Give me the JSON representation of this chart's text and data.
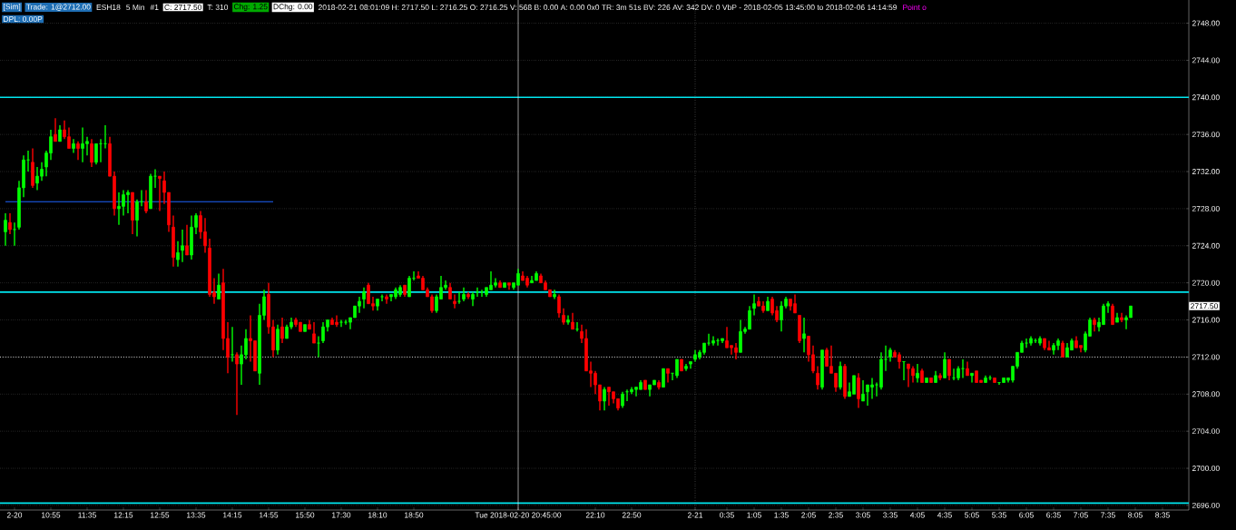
{
  "chart_data": {
    "type": "candlestick",
    "categories": [
      null,
      null,
      "2-20",
      null,
      null,
      null,
      null,
      null,
      null,
      null,
      "10:55",
      null,
      null,
      null,
      null,
      null,
      null,
      null,
      "11:35",
      null,
      null,
      null,
      null,
      null,
      null,
      null,
      "12:15",
      null,
      null,
      null,
      null,
      null,
      null,
      null,
      "12:55",
      null,
      null,
      null,
      null,
      null,
      null,
      null,
      "13:35",
      null,
      null,
      null,
      null,
      null,
      null,
      null,
      "14:15",
      null,
      null,
      null,
      null,
      null,
      null,
      null,
      "14:55",
      null,
      null,
      null,
      null,
      null,
      null,
      null,
      "15:50",
      null,
      null,
      null,
      null,
      null,
      null,
      null,
      "17:30",
      null,
      null,
      null,
      null,
      null,
      null,
      null,
      "18:10",
      null,
      null,
      null,
      null,
      null,
      null,
      null,
      "18:50",
      null,
      null,
      null,
      null,
      null,
      null,
      null,
      null,
      null,
      null,
      null,
      null,
      null,
      null,
      null,
      null,
      null,
      null,
      null,
      null,
      null,
      null,
      "Tue 2018-02-20 20:45:00",
      null,
      null,
      null,
      null,
      null,
      null,
      null,
      null,
      null,
      null,
      null,
      null,
      null,
      null,
      null,
      null,
      "22:10",
      null,
      null,
      null,
      null,
      null,
      null,
      null,
      "22:50",
      null,
      null,
      null,
      null,
      null,
      null,
      null,
      null,
      null,
      null,
      null,
      null,
      null,
      "2-21",
      null,
      null,
      null,
      null,
      null,
      null,
      "0:35",
      null,
      null,
      null,
      null,
      null,
      "1:05",
      null,
      null,
      null,
      null,
      null,
      "1:35",
      null,
      null,
      null,
      null,
      null,
      "2:05",
      null,
      null,
      null,
      null,
      null,
      "2:35",
      null,
      null,
      null,
      null,
      null,
      "3:05",
      null,
      null,
      null,
      null,
      null,
      "3:35",
      null,
      null,
      null,
      null,
      null,
      "4:05",
      null,
      null,
      null,
      null,
      null,
      "4:35",
      null,
      null,
      null,
      null,
      null,
      "5:05",
      null,
      null,
      null,
      null,
      null,
      "5:35",
      null,
      null,
      null,
      null,
      null,
      "6:05",
      null,
      null,
      null,
      null,
      null,
      "6:35",
      null,
      null,
      null,
      null,
      null,
      "7:05",
      null,
      null,
      null,
      null,
      null,
      "7:35",
      null,
      null,
      null,
      null,
      null,
      "8:05",
      null,
      null,
      null,
      null,
      null,
      "8:35",
      null,
      null,
      null,
      null,
      null
    ],
    "ohlc": [
      [
        2725.5,
        2727.5,
        2724,
        2726.75
      ],
      [
        2726.5,
        2727.5,
        2725.25,
        2725.75
      ],
      [
        2725.75,
        2726.5,
        2724,
        2725.75
      ],
      [
        2726,
        2731,
        2725.75,
        2730.25
      ],
      [
        2730.25,
        2733.75,
        2729.25,
        2733.25
      ],
      [
        2733.25,
        2734.25,
        2732,
        2733.25
      ],
      [
        2733,
        2734.5,
        2730.25,
        2730.5
      ],
      [
        2730.75,
        2732.5,
        2730,
        2731.5
      ],
      [
        2731.5,
        2733,
        2731,
        2732.25
      ],
      [
        2732.5,
        2734.25,
        2731.5,
        2734
      ],
      [
        2734,
        2736.5,
        2733.25,
        2735.75
      ],
      [
        2736,
        2737.75,
        2735.25,
        2735.25
      ],
      [
        2735.25,
        2737,
        2735.25,
        2736.5
      ],
      [
        2736.5,
        2737.5,
        2735.5,
        2735.75
      ],
      [
        2735.75,
        2736.75,
        2734.5,
        2734.5
      ],
      [
        2734.5,
        2735.5,
        2734,
        2735
      ],
      [
        2735,
        2735.25,
        2733.25,
        2734.5
      ],
      [
        2734.5,
        2736.75,
        2733,
        2735
      ],
      [
        2735,
        2735.75,
        2733.75,
        2735.25
      ],
      [
        2735,
        2735.5,
        2732.5,
        2733
      ],
      [
        2733,
        2735,
        2732.75,
        2735
      ],
      [
        2735,
        2735.5,
        2733,
        2735
      ],
      [
        2735,
        2737,
        2734.5,
        2735
      ],
      [
        2735,
        2735.75,
        2731.5,
        2731.5
      ],
      [
        2731.5,
        2732,
        2727.25,
        2728
      ],
      [
        2728,
        2729.75,
        2726.25,
        2728.25
      ],
      [
        2728.25,
        2730,
        2727.25,
        2729.5
      ],
      [
        2729.5,
        2730,
        2727.5,
        2729.75
      ],
      [
        2729.75,
        2729.75,
        2725.25,
        2726.75
      ],
      [
        2726.75,
        2729,
        2725,
        2728.75
      ],
      [
        2728.75,
        2730,
        2728.25,
        2728.75
      ],
      [
        2728.75,
        2730,
        2727.5,
        2727.75
      ],
      [
        2728,
        2731.75,
        2728,
        2731.5
      ],
      [
        2731.5,
        2732.25,
        2730.25,
        2731.5
      ],
      [
        2731.5,
        2731.5,
        2727.75,
        2731.25
      ],
      [
        2731,
        2732,
        2728.5,
        2729.75
      ],
      [
        2729.75,
        2729.75,
        2725.5,
        2726.25
      ],
      [
        2726,
        2727.25,
        2721.75,
        2722.75
      ],
      [
        2722.5,
        2724.5,
        2721.75,
        2723.25
      ],
      [
        2723.5,
        2725.75,
        2722.25,
        2724
      ],
      [
        2724,
        2726.25,
        2723,
        2723
      ],
      [
        2723,
        2727.25,
        2722.5,
        2726
      ],
      [
        2726,
        2727.5,
        2725.25,
        2727.25
      ],
      [
        2727.25,
        2727.75,
        2724.75,
        2725.5
      ],
      [
        2725.5,
        2727,
        2723.25,
        2724
      ],
      [
        2723.75,
        2724.75,
        2718.5,
        2718.75
      ],
      [
        2719,
        2720.5,
        2717.75,
        2718.5
      ],
      [
        2718.25,
        2721,
        2718.25,
        2719.75
      ],
      [
        2720,
        2721.5,
        2712.75,
        2714
      ],
      [
        2714,
        2715.75,
        2710.25,
        2712
      ],
      [
        2712.25,
        2715.25,
        2711.5,
        2712.25
      ],
      [
        2712.25,
        2712.5,
        2705.75,
        2711.25
      ],
      [
        2711.25,
        2713.25,
        2709,
        2712.25
      ],
      [
        2712.25,
        2715,
        2711.75,
        2714
      ],
      [
        2714,
        2716.5,
        2711.5,
        2713.75
      ],
      [
        2713.75,
        2713.75,
        2710.5,
        2710.5
      ],
      [
        2710.25,
        2717.75,
        2709,
        2716.5
      ],
      [
        2716.5,
        2719.25,
        2716,
        2718.5
      ],
      [
        2718.75,
        2720,
        2714.5,
        2715.25
      ],
      [
        2715.25,
        2716,
        2712,
        2712.75
      ],
      [
        2712.75,
        2715.5,
        2712.25,
        2715
      ],
      [
        2715.25,
        2716.25,
        2713.5,
        2714
      ],
      [
        2714,
        2715.5,
        2714,
        2715.25
      ],
      [
        2715.25,
        2716.25,
        2715,
        2715.75
      ],
      [
        2716,
        2716.25,
        2715.25,
        2715.5
      ],
      [
        2715.75,
        2715.75,
        2714.75,
        2714.75
      ],
      [
        2714.75,
        2715.5,
        2714.75,
        2715.5
      ],
      [
        2715.5,
        2716,
        2715,
        2715
      ],
      [
        2714.5,
        2715.75,
        2713.5,
        2713.5
      ],
      [
        2713.5,
        2714.25,
        2712,
        2713.5
      ],
      [
        2713.75,
        2715.75,
        2713.5,
        2715.25
      ],
      [
        2715.25,
        2716,
        2714.75,
        2716
      ],
      [
        2716,
        2716.25,
        2715.5,
        2715.5
      ],
      [
        2715.75,
        2716.5,
        2715.25,
        2715.5
      ],
      [
        2715.75,
        2716,
        2715.25,
        2715.75
      ],
      [
        2715.75,
        2716,
        2715.5,
        2715.75
      ],
      [
        2715.75,
        2716.25,
        2715,
        2716.25
      ],
      [
        2716.25,
        2717.5,
        2716.25,
        2717.5
      ],
      [
        2717.5,
        2718.5,
        2716.75,
        2718
      ],
      [
        2718.25,
        2719.5,
        2717.25,
        2719
      ],
      [
        2719.75,
        2720,
        2717.75,
        2717.75
      ],
      [
        2717.75,
        2718.5,
        2717,
        2717.5
      ],
      [
        2717.5,
        2718.25,
        2717,
        2718.25
      ],
      [
        2718.5,
        2718.75,
        2718,
        2718.5
      ],
      [
        2718.5,
        2718.75,
        2717.75,
        2718.25
      ],
      [
        2718.5,
        2718.75,
        2718,
        2718.75
      ],
      [
        2718.5,
        2719.5,
        2718.25,
        2719.25
      ],
      [
        2718.75,
        2719.75,
        2718.5,
        2719.5
      ],
      [
        2719.75,
        2719.75,
        2718.5,
        2718.75
      ],
      [
        2718.5,
        2720.75,
        2718.5,
        2720.5
      ],
      [
        2720.5,
        2721.25,
        2720.25,
        2720.5
      ],
      [
        2720.75,
        2721.25,
        2720.5,
        2720.5
      ],
      [
        2720.5,
        2720.75,
        2719.25,
        2719.25
      ],
      [
        2719.25,
        2719.5,
        2718.5,
        2718.5
      ],
      [
        2718.5,
        2718.75,
        2716.75,
        2717
      ],
      [
        2717,
        2718.75,
        2716.75,
        2718.5
      ],
      [
        2718.25,
        2720.75,
        2718.25,
        2719.5
      ],
      [
        2719.5,
        2720.25,
        2719.25,
        2719.75
      ],
      [
        2719.5,
        2720,
        2718.25,
        2718.25
      ],
      [
        2718,
        2718.75,
        2717.25,
        2717.75
      ],
      [
        2718,
        2719,
        2717.75,
        2718
      ],
      [
        2718.25,
        2719.5,
        2718,
        2718.75
      ],
      [
        2718.75,
        2719,
        2718.25,
        2718.5
      ],
      [
        2718.25,
        2719,
        2717.5,
        2718.75
      ],
      [
        2719,
        2719.5,
        2718.5,
        2719
      ],
      [
        2719,
        2719.25,
        2718.5,
        2719
      ],
      [
        2718.75,
        2719.5,
        2718.5,
        2719.5
      ],
      [
        2719.25,
        2721.25,
        2719.25,
        2719.75
      ],
      [
        2719.75,
        2720.5,
        2719.5,
        2720
      ],
      [
        2720,
        2720.25,
        2719.5,
        2719.5
      ],
      [
        2719.5,
        2720,
        2719.5,
        2720
      ],
      [
        2720,
        2720,
        2719.25,
        2719.75
      ],
      [
        2719.5,
        2720,
        2719.25,
        2720
      ],
      [
        2719.75,
        2721.5,
        2719.75,
        2721
      ],
      [
        2720.75,
        2721.25,
        2720.25,
        2720.25
      ],
      [
        2720.5,
        2720.75,
        2719.5,
        2719.75
      ],
      [
        2720,
        2720.75,
        2720,
        2720.25
      ],
      [
        2720.25,
        2721.25,
        2720.25,
        2721
      ],
      [
        2720.75,
        2721,
        2720,
        2720
      ],
      [
        2720,
        2720.25,
        2719.25,
        2719.25
      ],
      [
        2719.25,
        2719.25,
        2718.5,
        2718.5
      ],
      [
        2718.5,
        2719.25,
        2718.25,
        2718.75
      ],
      [
        2718.5,
        2718.75,
        2716.25,
        2716.75
      ],
      [
        2716.5,
        2717.25,
        2715.5,
        2715.75
      ],
      [
        2715.75,
        2716.5,
        2715.5,
        2716
      ],
      [
        2715.75,
        2716.75,
        2715,
        2715
      ],
      [
        2715,
        2715.75,
        2714.75,
        2715
      ],
      [
        2714.75,
        2715.5,
        2713.5,
        2714
      ],
      [
        2714,
        2715,
        2710.5,
        2710.5
      ],
      [
        2710.5,
        2711.5,
        2708.75,
        2710.25
      ],
      [
        2710.25,
        2710.5,
        2708,
        2709
      ],
      [
        2709,
        2709,
        2706.25,
        2707.25
      ],
      [
        2707.25,
        2708.75,
        2706.25,
        2708.5
      ],
      [
        2708.75,
        2708.75,
        2706.75,
        2708.25
      ],
      [
        2708.25,
        2708.25,
        2707,
        2707.5
      ],
      [
        2707.5,
        2707.5,
        2706.25,
        2706.5
      ],
      [
        2706.75,
        2708.25,
        2706.5,
        2708
      ],
      [
        2708.25,
        2708.5,
        2707.25,
        2708.25
      ],
      [
        2708.25,
        2708.75,
        2708,
        2708.5
      ],
      [
        2708.5,
        2708.75,
        2707.75,
        2708.75
      ],
      [
        2708.5,
        2709.5,
        2708.5,
        2709.25
      ],
      [
        2709.5,
        2709.5,
        2708.5,
        2708.5
      ],
      [
        2708.5,
        2709,
        2707.75,
        2709
      ],
      [
        2709,
        2709.5,
        2709,
        2709.5
      ],
      [
        2709.25,
        2709.5,
        2708.5,
        2708.75
      ],
      [
        2708.75,
        2710.75,
        2708.75,
        2710.75
      ],
      [
        2710.75,
        2710.75,
        2709.25,
        2710.25
      ],
      [
        2710.25,
        2710.25,
        2709.5,
        2710.25
      ],
      [
        2710,
        2711.75,
        2709.75,
        2711.75
      ],
      [
        2711.75,
        2711.75,
        2710.5,
        2710.5
      ],
      [
        2710.75,
        2711.25,
        2710.5,
        2711
      ],
      [
        2711.25,
        2711.5,
        2710.75,
        2711.5
      ],
      [
        2711.75,
        2712.75,
        2711.5,
        2712.25
      ],
      [
        2712,
        2712.75,
        2711.75,
        2712.5
      ],
      [
        2712.5,
        2713.5,
        2712.25,
        2713.5
      ],
      [
        2713.5,
        2714.5,
        2713.25,
        2713.5
      ],
      [
        2713.5,
        2714.25,
        2713.25,
        2713.75
      ],
      [
        2713.75,
        2714,
        2713.25,
        2713.75
      ],
      [
        2713.75,
        2714,
        2713.5,
        2714
      ],
      [
        2713.75,
        2715.25,
        2713,
        2713
      ],
      [
        2713.25,
        2713.25,
        2712.25,
        2713
      ],
      [
        2713,
        2713.5,
        2711.75,
        2712.5
      ],
      [
        2712.5,
        2716,
        2712.5,
        2714.75
      ],
      [
        2714.75,
        2715.25,
        2714.5,
        2715
      ],
      [
        2715,
        2717.5,
        2715,
        2717
      ],
      [
        2717.25,
        2718.75,
        2716.5,
        2717.75
      ],
      [
        2718,
        2718.5,
        2717.5,
        2717.5
      ],
      [
        2717.5,
        2718,
        2716.75,
        2717
      ],
      [
        2717,
        2718.5,
        2717,
        2718
      ],
      [
        2718.25,
        2718.5,
        2716.5,
        2716.75
      ],
      [
        2717,
        2717.5,
        2715.75,
        2716
      ],
      [
        2716,
        2718,
        2714.75,
        2717.5
      ],
      [
        2717.5,
        2718.5,
        2717.25,
        2718.25
      ],
      [
        2718.25,
        2718.25,
        2717,
        2717.5
      ],
      [
        2717.75,
        2718.75,
        2716.75,
        2716.75
      ],
      [
        2716.5,
        2716.5,
        2713.5,
        2713.75
      ],
      [
        2714,
        2716.25,
        2712.5,
        2714.5
      ],
      [
        2714.25,
        2714.25,
        2711.5,
        2712.25
      ],
      [
        2712.25,
        2713.25,
        2710.25,
        2710.5
      ],
      [
        2710.25,
        2711,
        2708.5,
        2709
      ],
      [
        2708.75,
        2712.75,
        2708.5,
        2712.75
      ],
      [
        2712.75,
        2713,
        2711,
        2711
      ],
      [
        2711,
        2713.25,
        2710.25,
        2710.25
      ],
      [
        2710.25,
        2710.25,
        2708.25,
        2708.75
      ],
      [
        2708.75,
        2711.5,
        2708.5,
        2711
      ],
      [
        2711,
        2711.25,
        2707.5,
        2707.75
      ],
      [
        2707.75,
        2709.25,
        2707.75,
        2708.25
      ],
      [
        2708,
        2710,
        2708,
        2710
      ],
      [
        2709.75,
        2710.25,
        2706.5,
        2707.5
      ],
      [
        2707.25,
        2709.5,
        2707.25,
        2708
      ],
      [
        2708.25,
        2709,
        2706.75,
        2709
      ],
      [
        2708.75,
        2709.75,
        2707.5,
        2709
      ],
      [
        2709,
        2709.25,
        2707.75,
        2709
      ],
      [
        2708.75,
        2712.5,
        2708.5,
        2711.75
      ],
      [
        2711.75,
        2713.25,
        2710.5,
        2711.75
      ],
      [
        2712,
        2713,
        2711.5,
        2712.75
      ],
      [
        2712.5,
        2712.75,
        2712,
        2712
      ],
      [
        2712.25,
        2712.5,
        2710.75,
        2711.5
      ],
      [
        2711.5,
        2711.5,
        2709.5,
        2711.5
      ],
      [
        2711.25,
        2711.25,
        2708.75,
        2710.75
      ],
      [
        2710.75,
        2711,
        2709.25,
        2710
      ],
      [
        2709.75,
        2711.25,
        2709.25,
        2710.25
      ],
      [
        2710.5,
        2710.75,
        2709.25,
        2709.25
      ],
      [
        2709.25,
        2709.75,
        2709.25,
        2709.75
      ],
      [
        2709.75,
        2709.75,
        2709.25,
        2709.25
      ],
      [
        2709.25,
        2710.5,
        2709.25,
        2710
      ],
      [
        2710,
        2710.25,
        2709.5,
        2709.75
      ],
      [
        2709.75,
        2712.5,
        2709.75,
        2711.75
      ],
      [
        2711.75,
        2711.75,
        2709.5,
        2710
      ],
      [
        2709.75,
        2710.75,
        2709.5,
        2709.75
      ],
      [
        2709.75,
        2711,
        2709.5,
        2710.75
      ],
      [
        2710.75,
        2711.75,
        2709.75,
        2710.75
      ],
      [
        2710.75,
        2711.5,
        2710,
        2710
      ],
      [
        2710,
        2710.25,
        2709.25,
        2710.25
      ],
      [
        2710.5,
        2710.5,
        2709.25,
        2709.25
      ],
      [
        2709.5,
        2709.5,
        2709.25,
        2709.25
      ],
      [
        2709.25,
        2710,
        2709.25,
        2709.75
      ],
      [
        2709.75,
        2710,
        2709.5,
        2709.75
      ],
      [
        2709.75,
        2709.75,
        2709.25,
        2709.25
      ],
      [
        2709.25,
        2709.25,
        2709,
        2709.25
      ],
      [
        2709.25,
        2709.75,
        2709.25,
        2709.75
      ],
      [
        2709.5,
        2709.75,
        2709.25,
        2709.75
      ],
      [
        2709.5,
        2711,
        2709.25,
        2711
      ],
      [
        2711,
        2712.5,
        2710.75,
        2712.5
      ],
      [
        2712.5,
        2713.75,
        2712.5,
        2713.5
      ],
      [
        2713.5,
        2714,
        2713,
        2713.5
      ],
      [
        2713.5,
        2714.25,
        2713.25,
        2714
      ],
      [
        2713.75,
        2714,
        2713.5,
        2713.75
      ],
      [
        2713.5,
        2714.25,
        2713.25,
        2714
      ],
      [
        2714,
        2714,
        2712.75,
        2713
      ],
      [
        2713,
        2713.75,
        2712.75,
        2712.75
      ],
      [
        2712.75,
        2713.5,
        2712.25,
        2713.25
      ],
      [
        2713.25,
        2714,
        2712.75,
        2713.75
      ],
      [
        2713.5,
        2713.75,
        2712,
        2712
      ],
      [
        2712,
        2713.5,
        2712,
        2713
      ],
      [
        2712.75,
        2714,
        2712.75,
        2713.75
      ],
      [
        2713.75,
        2714.25,
        2713,
        2713
      ],
      [
        2713.25,
        2713.25,
        2712.5,
        2713
      ],
      [
        2712.75,
        2714.75,
        2712.5,
        2714.5
      ],
      [
        2714.25,
        2716.25,
        2714.25,
        2716
      ],
      [
        2716,
        2716.25,
        2714.75,
        2715.5
      ],
      [
        2715.25,
        2716.25,
        2714.75,
        2715.75
      ],
      [
        2715.5,
        2717.75,
        2715.5,
        2717.5
      ],
      [
        2717.5,
        2718,
        2716.75,
        2717.75
      ],
      [
        2717.5,
        2717.75,
        2715.5,
        2715.5
      ],
      [
        2715.75,
        2716.75,
        2715.75,
        2716.25
      ],
      [
        2716.25,
        2716.75,
        2715.75,
        2716
      ],
      [
        2716,
        2716.5,
        2715,
        2716.25
      ],
      [
        2716.25,
        2717.5,
        2716.25,
        2717.5
      ],
      null,
      null,
      null,
      null,
      null,
      null,
      null,
      null,
      null,
      null,
      null,
      null
    ],
    "series": [
      {
        "type": "line",
        "color": "#1e64ff",
        "values": [
          2728.75,
          2728.75,
          2728.75,
          2728.75,
          2728.75,
          2728.75,
          2728.75,
          2728.75,
          2728.75,
          2728.75,
          2728.75,
          2728.75,
          2728.75,
          2728.75,
          2728.75,
          2728.75,
          2728.75,
          2728.75,
          2728.75,
          2728.75,
          2728.75,
          2728.75,
          2728.75,
          2728.75,
          2728.75,
          2728.75,
          2728.75,
          2728.75,
          2728.75,
          2728.75,
          2728.75,
          2728.75,
          2728.75,
          2728.75,
          2728.75,
          2728.75,
          2728.75,
          2728.75,
          2728.75,
          2728.75,
          2728.75,
          2728.75,
          2728.75,
          2728.75,
          2728.75,
          2728.75,
          2728.75,
          2728.75,
          2728.75,
          2728.75,
          2728.75,
          2728.75,
          2728.75,
          2728.75,
          2728.75,
          2728.75,
          2728.75,
          2728.75,
          2728.75,
          2728.75,
          null,
          null,
          null,
          null,
          null,
          null,
          null,
          null,
          null,
          null,
          null,
          null,
          null,
          null,
          null,
          null,
          null,
          null,
          null,
          null,
          null,
          null,
          null,
          null,
          null,
          null,
          null,
          null,
          null,
          null,
          null,
          null,
          null,
          null,
          null,
          null,
          null,
          null,
          null,
          null,
          null,
          null,
          null,
          null,
          null,
          null,
          null,
          null,
          null,
          null,
          null,
          null,
          null,
          null,
          null,
          null,
          null,
          null,
          null,
          null,
          null,
          null,
          null,
          null,
          null,
          null,
          null,
          null,
          null,
          null,
          null,
          null,
          null,
          null,
          null,
          null,
          null,
          null,
          null,
          null,
          null,
          null,
          null,
          null,
          null,
          null,
          null,
          null,
          null,
          null,
          null,
          null,
          null,
          null,
          null,
          null,
          null,
          null,
          null,
          null,
          null,
          null,
          null,
          null,
          null,
          null,
          null,
          null,
          null,
          null,
          null,
          null,
          null,
          null,
          null,
          null,
          null,
          null,
          null,
          null,
          null,
          null,
          null,
          null,
          null,
          null,
          null,
          null,
          null,
          null,
          null,
          null,
          null,
          null,
          null,
          null,
          null,
          null,
          null,
          null,
          null,
          null,
          null,
          null,
          null,
          null,
          null,
          null,
          null,
          null,
          null,
          null,
          null,
          null,
          null,
          null,
          null,
          null,
          null,
          null,
          null,
          null,
          null,
          null,
          null,
          null,
          null,
          null,
          null,
          null,
          null,
          null,
          null,
          null,
          null,
          null,
          null,
          null,
          null,
          null,
          null,
          null,
          null,
          null,
          null,
          null,
          null,
          null,
          null,
          null,
          null,
          null,
          null,
          null,
          null,
          null,
          null,
          null,
          null,
          null,
          null
        ]
      }
    ],
    "ylim": [
      2695.5,
      2750.5
    ],
    "yticks": [
      {
        "value": 2696,
        "label": "2696.00"
      },
      {
        "value": 2700,
        "label": "2700.00"
      },
      {
        "value": 2704,
        "label": "2704.00"
      },
      {
        "value": 2708,
        "label": "2708.00"
      },
      {
        "value": 2712,
        "label": "2712.00"
      },
      {
        "value": 2716,
        "label": "2716.00"
      },
      {
        "value": 2720,
        "label": "2720.00"
      },
      {
        "value": 2724,
        "label": "2724.00"
      },
      {
        "value": 2728,
        "label": "2728.00"
      },
      {
        "value": 2732,
        "label": "2732.00"
      },
      {
        "value": 2736,
        "label": "2736.00"
      },
      {
        "value": 2740,
        "label": "2740.00"
      },
      {
        "value": 2744,
        "label": "2744.00"
      },
      {
        "value": 2748,
        "label": "2748.00"
      }
    ],
    "grid": "y",
    "ref_lines": [
      {
        "axis": "y",
        "value": 2740,
        "color": "#00e5ee"
      },
      {
        "axis": "y",
        "value": 2719,
        "color": "#00e5ee"
      },
      {
        "axis": "y",
        "value": 2696.25,
        "color": "#00e5ee"
      },
      {
        "axis": "y",
        "value": 2712,
        "color": "#ffffff",
        "line_style": "dotted"
      },
      {
        "axis": "x",
        "value": "2-21",
        "color": "#a0a0a0",
        "line_style": "dotted"
      },
      {
        "axis": "x",
        "value": "Tue 2018-02-20 20:45:00",
        "color": "#ffffff"
      }
    ],
    "annotations": [
      "[Sim]",
      "Trade: 1@2712.00",
      "ESH18",
      "5 Min",
      "#1",
      "C: 2717.50",
      "T: 310",
      "Chg: 1.25",
      "DChg: 0.00",
      "2018-02-21 08:01:09 H: 2717.50 L: 2716.25 O: 2716.25 V: 568 B: 0.00 A: 0.00 0x0 TR: 3m 51s BV: 226 AV: 342 DV: 0 VbP - 2018-02-05 13:45:00 to 2018-02-06 14:14:59",
      "Point o",
      "DPL: 0.00P",
      "2717.50"
    ]
  }
}
